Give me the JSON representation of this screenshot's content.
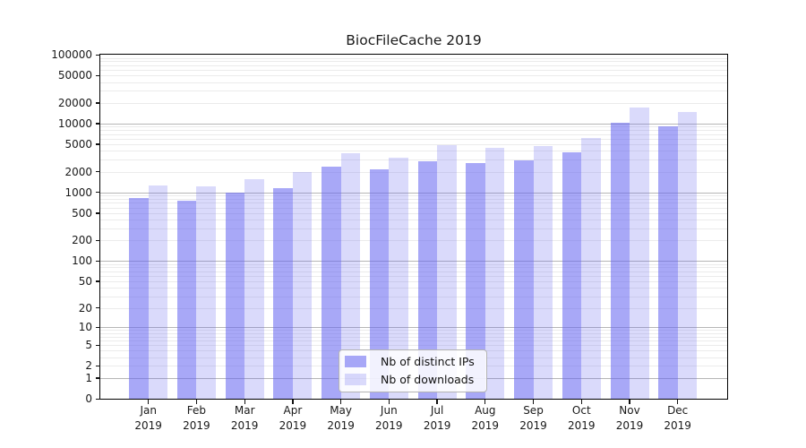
{
  "title": "BiocFileCache 2019",
  "chart_data": {
    "type": "bar",
    "title": "BiocFileCache 2019",
    "categories": [
      "Jan 2019",
      "Feb 2019",
      "Mar 2019",
      "Apr 2019",
      "May 2019",
      "Jun 2019",
      "Jul 2019",
      "Aug 2019",
      "Sep 2019",
      "Oct 2019",
      "Nov 2019",
      "Dec 2019"
    ],
    "series": [
      {
        "name": "Nb of distinct IPs",
        "color": "rgba(100,100,240,0.56)",
        "values": [
          815,
          750,
          980,
          1150,
          2330,
          2150,
          2850,
          2660,
          2940,
          3780,
          10300,
          9000
        ]
      },
      {
        "name": "Nb of downloads",
        "color": "rgba(100,100,240,0.24)",
        "values": [
          1250,
          1215,
          1560,
          1950,
          3660,
          3150,
          4850,
          4480,
          4700,
          6100,
          16900,
          14700
        ]
      }
    ],
    "yscale": "log1p",
    "ylim": [
      0,
      100000
    ],
    "yticks": [
      0,
      1,
      2,
      5,
      10,
      20,
      50,
      100,
      200,
      500,
      1000,
      2000,
      5000,
      10000,
      20000,
      50000,
      100000
    ],
    "xlabel": "",
    "ylabel": "",
    "grid": "on",
    "legend_position": "lower center"
  },
  "legend": {
    "items": [
      {
        "label": "Nb of distinct IPs"
      },
      {
        "label": "Nb of downloads"
      }
    ]
  },
  "colors": {
    "bar_ips": "rgba(100,100,240,0.56)",
    "bar_downloads": "rgba(100,100,240,0.24)",
    "grid_major": "#b6b6b6",
    "grid_minor": "#ebebeb",
    "axis": "#000000",
    "text": "#191919",
    "legend_border": "#b3b3b3"
  }
}
